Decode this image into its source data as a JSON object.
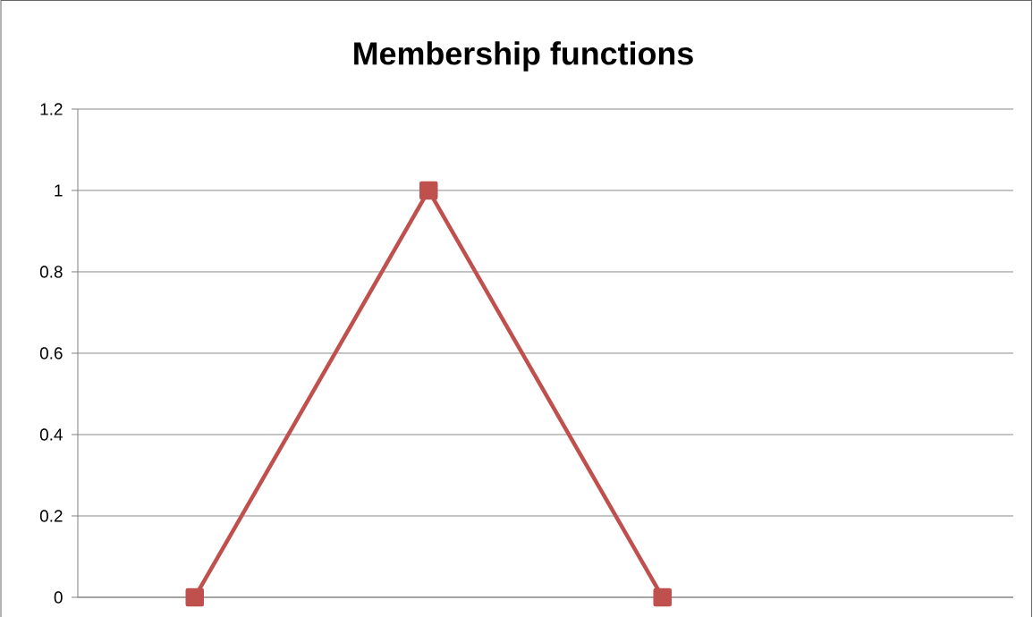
{
  "chart_data": {
    "type": "line",
    "title": "Membership functions",
    "categories": [
      null,
      null,
      null,
      null
    ],
    "series": [
      {
        "color": "#c0504d",
        "values": [
          0,
          1,
          0,
          null
        ]
      }
    ],
    "ylim": [
      0,
      1.2
    ],
    "yticks": [
      0,
      0.2,
      0.4,
      0.6,
      0.8,
      1,
      1.2
    ],
    "grid": "y",
    "marker": "square",
    "line_style": "solid"
  }
}
